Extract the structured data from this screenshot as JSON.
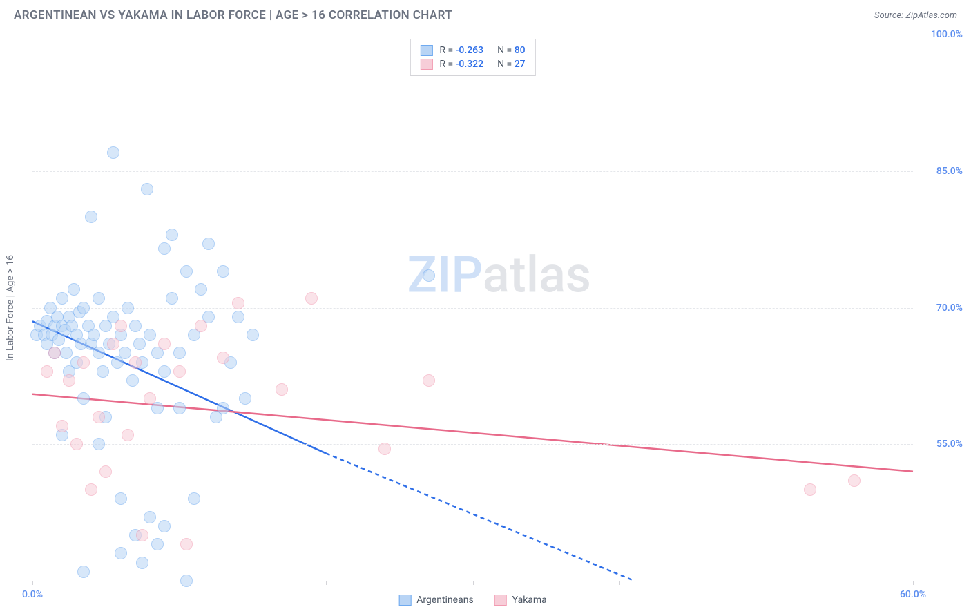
{
  "header": {
    "title": "ARGENTINEAN VS YAKAMA IN LABOR FORCE | AGE > 16 CORRELATION CHART",
    "source_prefix": "Source: ",
    "source_name": "ZipAtlas.com"
  },
  "watermark": {
    "part1": "ZIP",
    "part2": "atlas"
  },
  "chart": {
    "type": "scatter",
    "background_color": "#ffffff",
    "grid_color": "#e5e7eb",
    "axis_color": "#d4d4d8",
    "tick_label_color": "#5b8def",
    "yaxis_title": "In Labor Force | Age > 16",
    "xlim": [
      0,
      60
    ],
    "ylim": [
      40,
      100
    ],
    "yticks": [
      55,
      70,
      85,
      100
    ],
    "ytick_labels": [
      "55.0%",
      "70.0%",
      "85.0%",
      "100.0%"
    ],
    "xticks": [
      0,
      10,
      20,
      30,
      40,
      50,
      60
    ],
    "xtick_labels_shown": {
      "0": "0.0%",
      "60": "60.0%"
    },
    "point_radius": 9,
    "point_stroke_width": 1,
    "series": [
      {
        "name": "Argentineans",
        "fill": "#b8d4f5",
        "stroke": "#6faaf0",
        "fill_opacity": 0.55,
        "r": -0.263,
        "n": 80,
        "regression": {
          "color": "#2f6fe8",
          "width": 2.5,
          "solid": {
            "x1": 0,
            "y1": 68.5,
            "x2": 20,
            "y2": 54
          },
          "dashed": {
            "x1": 20,
            "y1": 54,
            "x2": 41,
            "y2": 40
          }
        },
        "points": [
          [
            0.3,
            67
          ],
          [
            0.5,
            68
          ],
          [
            0.8,
            67
          ],
          [
            1,
            68.5
          ],
          [
            1,
            66
          ],
          [
            1.2,
            70
          ],
          [
            1.3,
            67
          ],
          [
            1.5,
            68
          ],
          [
            1.5,
            65
          ],
          [
            1.7,
            69
          ],
          [
            1.8,
            66.5
          ],
          [
            2,
            68
          ],
          [
            2,
            71
          ],
          [
            2.2,
            67.5
          ],
          [
            2.3,
            65
          ],
          [
            2.5,
            69
          ],
          [
            2.5,
            63
          ],
          [
            2.7,
            68
          ],
          [
            2.8,
            72
          ],
          [
            3,
            67
          ],
          [
            3,
            64
          ],
          [
            3.2,
            69.5
          ],
          [
            3.3,
            66
          ],
          [
            3.5,
            70
          ],
          [
            3.5,
            60
          ],
          [
            3.8,
            68
          ],
          [
            4,
            66
          ],
          [
            4,
            80
          ],
          [
            4.2,
            67
          ],
          [
            4.5,
            65
          ],
          [
            4.5,
            71
          ],
          [
            4.8,
            63
          ],
          [
            5,
            68
          ],
          [
            5,
            58
          ],
          [
            5.2,
            66
          ],
          [
            5.5,
            69
          ],
          [
            5.5,
            87
          ],
          [
            5.8,
            64
          ],
          [
            6,
            67
          ],
          [
            6,
            49
          ],
          [
            6.3,
            65
          ],
          [
            6.5,
            70
          ],
          [
            6.8,
            62
          ],
          [
            7,
            68
          ],
          [
            7,
            45
          ],
          [
            7.3,
            66
          ],
          [
            7.5,
            64
          ],
          [
            7.8,
            83
          ],
          [
            8,
            67
          ],
          [
            8,
            47
          ],
          [
            8.5,
            65
          ],
          [
            8.5,
            59
          ],
          [
            9,
            76.5
          ],
          [
            9,
            63
          ],
          [
            9.5,
            71
          ],
          [
            9.5,
            78
          ],
          [
            10,
            59
          ],
          [
            10,
            65
          ],
          [
            10.5,
            74
          ],
          [
            10.5,
            40
          ],
          [
            11,
            49
          ],
          [
            11,
            67
          ],
          [
            11.5,
            72
          ],
          [
            12,
            69
          ],
          [
            12,
            77
          ],
          [
            12.5,
            58
          ],
          [
            13,
            74
          ],
          [
            13,
            59
          ],
          [
            13.5,
            64
          ],
          [
            14,
            69
          ],
          [
            14.5,
            60
          ],
          [
            15,
            67
          ],
          [
            7.5,
            42
          ],
          [
            8.5,
            44
          ],
          [
            3.5,
            41
          ],
          [
            6,
            43
          ],
          [
            9,
            46
          ],
          [
            4.5,
            55
          ],
          [
            2,
            56
          ],
          [
            27,
            73.5
          ]
        ]
      },
      {
        "name": "Yakama",
        "fill": "#f7cdd8",
        "stroke": "#f29bb1",
        "fill_opacity": 0.55,
        "r": -0.322,
        "n": 27,
        "regression": {
          "color": "#e86a8a",
          "width": 2.5,
          "solid": {
            "x1": 0,
            "y1": 60.5,
            "x2": 60,
            "y2": 52
          }
        },
        "points": [
          [
            1,
            63
          ],
          [
            1.5,
            65
          ],
          [
            2,
            57
          ],
          [
            2.5,
            62
          ],
          [
            3,
            55
          ],
          [
            3.5,
            64
          ],
          [
            4,
            50
          ],
          [
            4.5,
            58
          ],
          [
            5,
            52
          ],
          [
            5.5,
            66
          ],
          [
            6,
            68
          ],
          [
            6.5,
            56
          ],
          [
            7,
            64
          ],
          [
            7.5,
            45
          ],
          [
            8,
            60
          ],
          [
            9,
            66
          ],
          [
            10,
            63
          ],
          [
            10.5,
            44
          ],
          [
            11.5,
            68
          ],
          [
            13,
            64.5
          ],
          [
            14,
            70.5
          ],
          [
            17,
            61
          ],
          [
            19,
            71
          ],
          [
            24,
            54.5
          ],
          [
            27,
            62
          ],
          [
            53,
            50
          ],
          [
            56,
            51
          ]
        ]
      }
    ],
    "legend_bottom": [
      {
        "label": "Argentineans",
        "fill": "#b8d4f5",
        "stroke": "#6faaf0"
      },
      {
        "label": "Yakama",
        "fill": "#f7cdd8",
        "stroke": "#f29bb1"
      }
    ],
    "legend_top": [
      {
        "fill": "#b8d4f5",
        "stroke": "#6faaf0",
        "r_label": "R =",
        "r_val": "-0.263",
        "n_label": "N =",
        "n_val": "80"
      },
      {
        "fill": "#f7cdd8",
        "stroke": "#f29bb1",
        "r_label": "R =",
        "r_val": "-0.322",
        "n_label": "N =",
        "n_val": "27"
      }
    ]
  }
}
